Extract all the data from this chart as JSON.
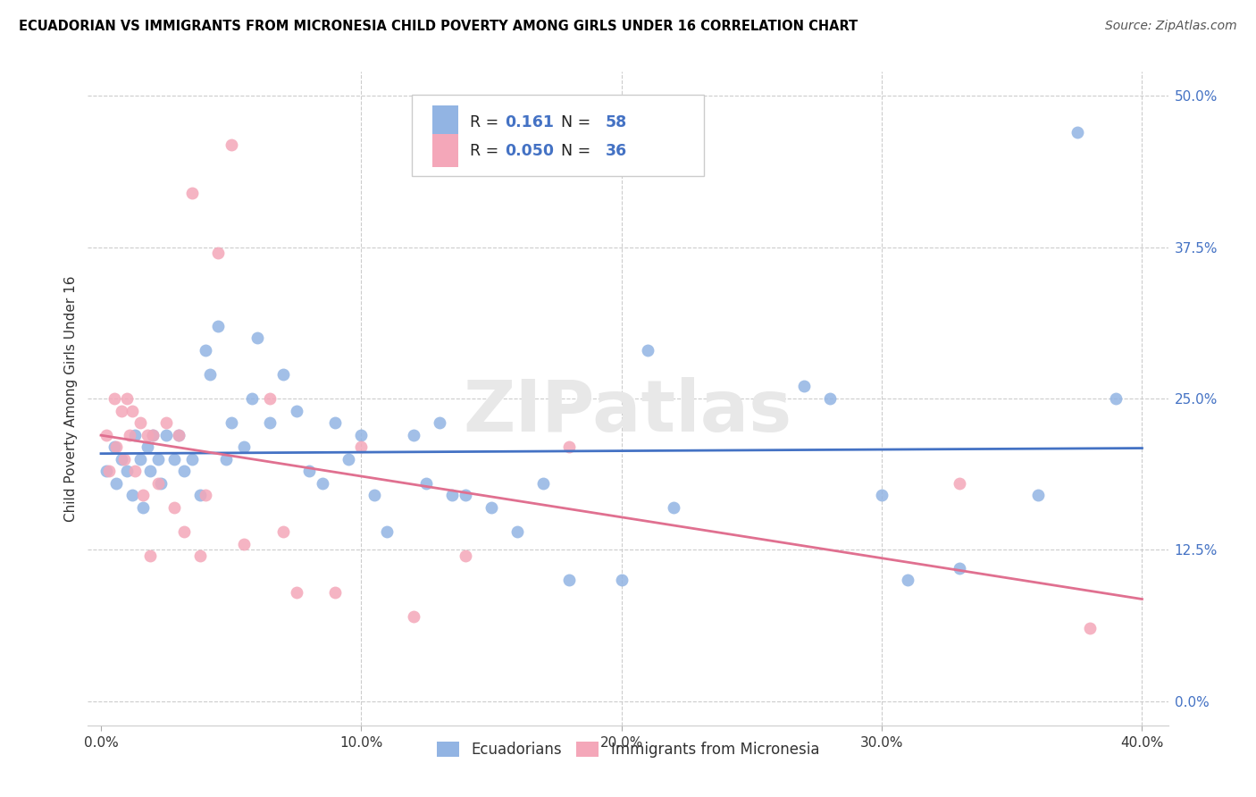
{
  "title": "ECUADORIAN VS IMMIGRANTS FROM MICRONESIA CHILD POVERTY AMONG GIRLS UNDER 16 CORRELATION CHART",
  "source": "Source: ZipAtlas.com",
  "xlabel_ticks": [
    "0.0%",
    "10.0%",
    "20.0%",
    "30.0%",
    "40.0%"
  ],
  "xlabel_tick_vals": [
    0.0,
    0.1,
    0.2,
    0.3,
    0.4
  ],
  "ylabel_ticks": [
    "0.0%",
    "12.5%",
    "25.0%",
    "37.5%",
    "50.0%"
  ],
  "ylabel_tick_vals": [
    0.0,
    0.125,
    0.25,
    0.375,
    0.5
  ],
  "xlim": [
    -0.005,
    0.41
  ],
  "ylim": [
    -0.02,
    0.52
  ],
  "ylabel": "Child Poverty Among Girls Under 16",
  "legend_label1": "Ecuadorians",
  "legend_label2": "Immigrants from Micronesia",
  "R1": 0.161,
  "N1": 58,
  "R2": 0.05,
  "N2": 36,
  "blue_color": "#92b4e3",
  "pink_color": "#f4a7b9",
  "line_blue": "#4472c4",
  "line_pink": "#e07090",
  "watermark": "ZIPatlas",
  "blue_x": [
    0.002,
    0.005,
    0.006,
    0.008,
    0.01,
    0.012,
    0.013,
    0.015,
    0.016,
    0.018,
    0.019,
    0.02,
    0.022,
    0.023,
    0.025,
    0.028,
    0.03,
    0.032,
    0.035,
    0.038,
    0.04,
    0.042,
    0.045,
    0.048,
    0.05,
    0.055,
    0.058,
    0.06,
    0.065,
    0.07,
    0.075,
    0.08,
    0.085,
    0.09,
    0.095,
    0.1,
    0.105,
    0.11,
    0.12,
    0.125,
    0.13,
    0.135,
    0.14,
    0.15,
    0.16,
    0.17,
    0.18,
    0.2,
    0.21,
    0.22,
    0.27,
    0.28,
    0.3,
    0.31,
    0.33,
    0.36,
    0.375,
    0.39
  ],
  "blue_y": [
    0.19,
    0.21,
    0.18,
    0.2,
    0.19,
    0.17,
    0.22,
    0.2,
    0.16,
    0.21,
    0.19,
    0.22,
    0.2,
    0.18,
    0.22,
    0.2,
    0.22,
    0.19,
    0.2,
    0.17,
    0.29,
    0.27,
    0.31,
    0.2,
    0.23,
    0.21,
    0.25,
    0.3,
    0.23,
    0.27,
    0.24,
    0.19,
    0.18,
    0.23,
    0.2,
    0.22,
    0.17,
    0.14,
    0.22,
    0.18,
    0.23,
    0.17,
    0.17,
    0.16,
    0.14,
    0.18,
    0.1,
    0.1,
    0.29,
    0.16,
    0.26,
    0.25,
    0.17,
    0.1,
    0.11,
    0.17,
    0.47,
    0.25
  ],
  "pink_x": [
    0.002,
    0.003,
    0.005,
    0.006,
    0.008,
    0.009,
    0.01,
    0.011,
    0.012,
    0.013,
    0.015,
    0.016,
    0.018,
    0.019,
    0.02,
    0.022,
    0.025,
    0.028,
    0.03,
    0.032,
    0.035,
    0.038,
    0.04,
    0.045,
    0.05,
    0.055,
    0.065,
    0.07,
    0.075,
    0.09,
    0.1,
    0.12,
    0.14,
    0.18,
    0.33,
    0.38
  ],
  "pink_y": [
    0.22,
    0.19,
    0.25,
    0.21,
    0.24,
    0.2,
    0.25,
    0.22,
    0.24,
    0.19,
    0.23,
    0.17,
    0.22,
    0.12,
    0.22,
    0.18,
    0.23,
    0.16,
    0.22,
    0.14,
    0.42,
    0.12,
    0.17,
    0.37,
    0.46,
    0.13,
    0.25,
    0.14,
    0.09,
    0.09,
    0.21,
    0.07,
    0.12,
    0.21,
    0.18,
    0.06
  ]
}
